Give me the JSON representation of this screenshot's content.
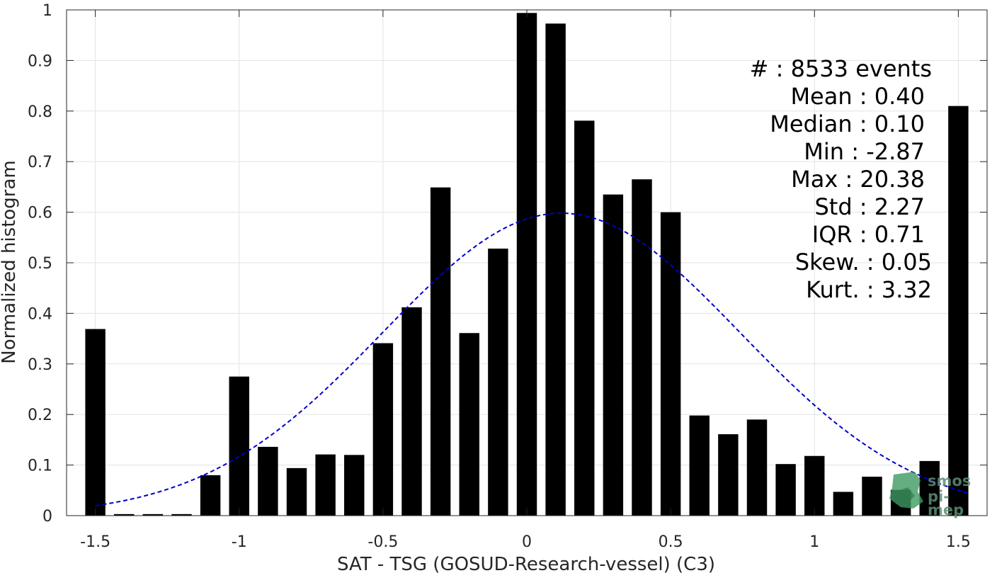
{
  "chart_data": {
    "type": "bar",
    "xlabel": "SAT - TSG (GOSUD-Research-vessel) (C3)",
    "ylabel": "Normalized histogram",
    "xlim": [
      -1.6,
      1.6
    ],
    "ylim": [
      0,
      1
    ],
    "xticks": [
      -1.5,
      -1,
      -0.5,
      0,
      0.5,
      1,
      1.5
    ],
    "xtick_labels": [
      "-1.5",
      "-1",
      "-0.5",
      "0",
      "0.5",
      "1",
      "1.5"
    ],
    "yticks": [
      0,
      0.1,
      0.2,
      0.3,
      0.4,
      0.5,
      0.6,
      0.7,
      0.8,
      0.9,
      1
    ],
    "ytick_labels": [
      "0",
      "0.1",
      "0.2",
      "0.3",
      "0.4",
      "0.5",
      "0.6",
      "0.7",
      "0.8",
      "0.9",
      "1"
    ],
    "grid": true,
    "bar_color": "#000000",
    "bars": {
      "x": [
        -1.5,
        -1.4,
        -1.3,
        -1.2,
        -1.1,
        -1.0,
        -0.9,
        -0.8,
        -0.7,
        -0.6,
        -0.5,
        -0.4,
        -0.3,
        -0.2,
        -0.1,
        0.0,
        0.1,
        0.2,
        0.3,
        0.4,
        0.5,
        0.6,
        0.7,
        0.8,
        0.9,
        1.0,
        1.1,
        1.2,
        1.3,
        1.4,
        1.5
      ],
      "values": [
        0.369,
        0.003,
        0.003,
        0.003,
        0.08,
        0.275,
        0.136,
        0.094,
        0.121,
        0.12,
        0.341,
        0.412,
        0.649,
        0.361,
        0.528,
        0.994,
        0.973,
        0.781,
        0.635,
        0.665,
        0.6,
        0.198,
        0.161,
        0.19,
        0.102,
        0.118,
        0.047,
        0.077,
        0.051,
        0.108,
        0.81
      ]
    },
    "fit_curve": {
      "kind": "normal",
      "color": "#0000cc",
      "style": "dashed",
      "peak": 0.598,
      "mean": 0.12,
      "sd": 0.62,
      "x_range": [
        -1.5,
        1.53
      ]
    },
    "stats_lines": [
      "#  : 8533 events",
      "Mean : 0.40",
      "Median : 0.10",
      "Min : -2.87",
      "Max : 20.38",
      "Std : 2.27",
      "IQR : 0.71",
      "Skew. : 0.05",
      "Kurt. : 3.32"
    ],
    "watermark": {
      "line1": "smos",
      "line2": "pi-mep"
    }
  }
}
